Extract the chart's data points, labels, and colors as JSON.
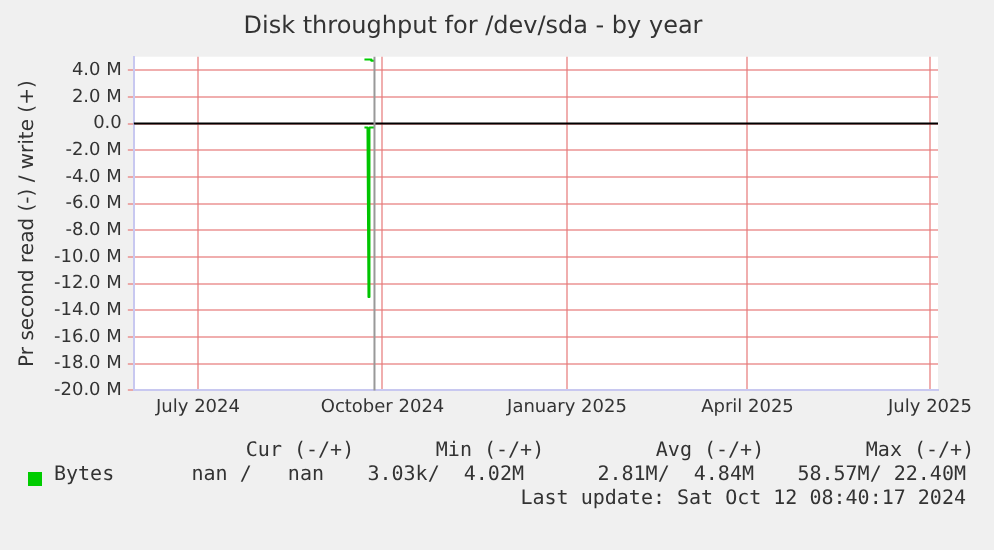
{
  "chart_data": {
    "type": "line",
    "title": "Disk throughput for /dev/sda - by year",
    "ylabel": "Pr second read (-) / write (+)",
    "x": [
      "2024-10-07",
      "2024-10-10",
      "2024-10-10T12:00",
      "2024-10-12"
    ],
    "series": [
      {
        "name": "Bytes",
        "color": "#00cc00",
        "values": [
          4.8,
          4.8,
          4.7,
          4.7
        ]
      },
      {
        "color": "#00c400",
        "x": [
          "2024-10-07",
          "2024-10-08T12:00",
          "2024-10-09",
          "2024-10-09T12:00",
          "2024-10-12"
        ],
        "values": [
          -0.3,
          -0.3,
          -13,
          -0.3,
          -0.3
        ]
      }
    ],
    "xlim": [
      "2024-06-14",
      "2025-07-20"
    ],
    "xticks": [
      {
        "value": "2024-07-16",
        "label": "July 2024"
      },
      {
        "value": "2024-10-16",
        "label": "October 2024"
      },
      {
        "value": "2025-01-16",
        "label": "January 2025"
      },
      {
        "value": "2025-04-16",
        "label": "April 2025"
      },
      {
        "value": "2025-07-16",
        "label": "July 2025"
      }
    ],
    "ylim": [
      -20,
      5
    ],
    "yticks": [
      {
        "value": 4,
        "label": "4.0 M"
      },
      {
        "value": 2,
        "label": "2.0 M"
      },
      {
        "value": 0,
        "label": "0.0"
      },
      {
        "value": -2,
        "label": "-2.0 M"
      },
      {
        "value": -4,
        "label": "-4.0 M"
      },
      {
        "value": -6,
        "label": "-6.0 M"
      },
      {
        "value": -8,
        "label": "-8.0 M"
      },
      {
        "value": -10,
        "label": "-10.0 M"
      },
      {
        "value": -12,
        "label": "-12.0 M"
      },
      {
        "value": -14,
        "label": "-14.0 M"
      },
      {
        "value": -16,
        "label": "-16.0 M"
      },
      {
        "value": -18,
        "label": "-18.0 M"
      },
      {
        "value": -20,
        "label": "-20.0 M"
      }
    ],
    "ref_lines": [
      {
        "axis": "y",
        "value": 0,
        "color": "#000000"
      },
      {
        "axis": "x",
        "value": "2024-10-12",
        "color": "#999999"
      }
    ],
    "grid": true,
    "legend": "bottom",
    "marker": "none",
    "line_style": "solid",
    "annotations": [
      "Cur (-/+)",
      "Min (-/+)",
      "Avg (-/+)",
      "Max (-/+)",
      "nan /   nan",
      "3.03k/  4.02M",
      "2.81M/  4.84M",
      "58.57M/ 22.40M",
      "Last update: Sat Oct 12 08:40:17 2024"
    ]
  }
}
